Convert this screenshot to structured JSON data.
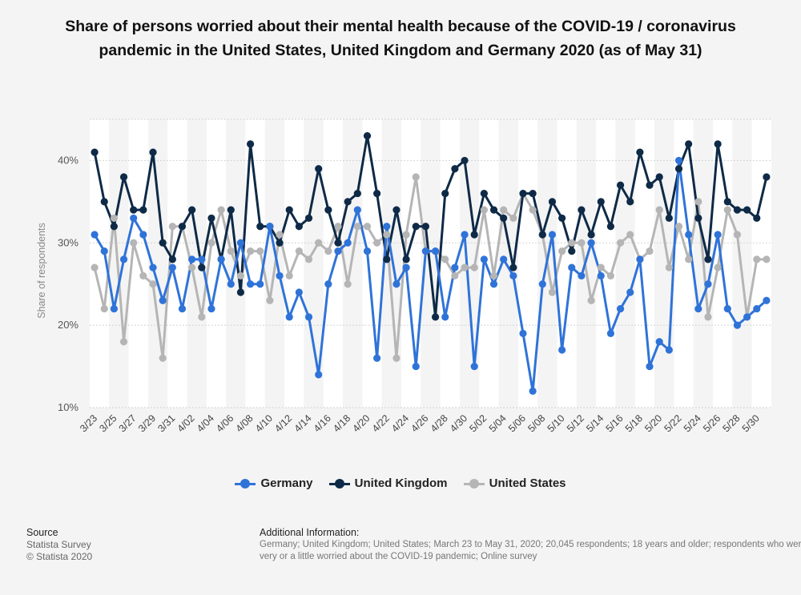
{
  "title": "Share of persons worried about their mental health because of the COVID-19 / coronavirus pandemic in the United States, United Kingdom and Germany 2020 (as of May 31)",
  "source": {
    "heading": "Source",
    "lines": [
      "Statista Survey",
      "© Statista 2020"
    ]
  },
  "additional_info": {
    "heading": "Additional Information:",
    "text": "Germany; United Kingdom; United States; March 23 to May 31, 2020; 20,045 respondents; 18 years and older; respondents who were very or a little worried about the COVID-19 pandemic; Online survey"
  },
  "chart_data": {
    "type": "line",
    "ylabel": "Share of respondents",
    "xlabel": "",
    "ylim": [
      10,
      45
    ],
    "yticks": [
      10,
      20,
      30,
      40
    ],
    "ytick_labels": [
      "10%",
      "20%",
      "30%",
      "40%"
    ],
    "grid": true,
    "legend_position": "bottom",
    "x": [
      "3/23",
      "3/24",
      "3/25",
      "3/26",
      "3/27",
      "3/28",
      "3/29",
      "3/30",
      "3/31",
      "4/01",
      "4/02",
      "4/03",
      "4/04",
      "4/05",
      "4/06",
      "4/07",
      "4/08",
      "4/09",
      "4/10",
      "4/11",
      "4/12",
      "4/13",
      "4/14",
      "4/15",
      "4/16",
      "4/17",
      "4/18",
      "4/19",
      "4/20",
      "4/21",
      "4/22",
      "4/23",
      "4/24",
      "4/25",
      "4/26",
      "4/27",
      "4/28",
      "4/29",
      "4/30",
      "5/01",
      "5/02",
      "5/03",
      "5/04",
      "5/05",
      "5/06",
      "5/07",
      "5/08",
      "5/09",
      "5/10",
      "5/11",
      "5/12",
      "5/13",
      "5/14",
      "5/15",
      "5/16",
      "5/17",
      "5/18",
      "5/19",
      "5/20",
      "5/21",
      "5/22",
      "5/23",
      "5/24",
      "5/25",
      "5/26",
      "5/27",
      "5/28",
      "5/29",
      "5/30",
      "5/31"
    ],
    "x_tick_labels": [
      "3/23",
      "3/25",
      "3/27",
      "3/29",
      "3/31",
      "4/02",
      "4/04",
      "4/06",
      "4/08",
      "4/10",
      "4/12",
      "4/14",
      "4/16",
      "4/18",
      "4/20",
      "4/22",
      "4/24",
      "4/26",
      "4/28",
      "4/30",
      "5/02",
      "5/04",
      "5/06",
      "5/08",
      "5/10",
      "5/12",
      "5/14",
      "5/16",
      "5/18",
      "5/20",
      "5/22",
      "5/24",
      "5/26",
      "5/28",
      "5/30"
    ],
    "series": [
      {
        "name": "Germany",
        "color": "#2f73d8",
        "values": [
          31,
          29,
          22,
          28,
          33,
          31,
          27,
          23,
          27,
          22,
          28,
          28,
          22,
          28,
          25,
          30,
          25,
          25,
          32,
          26,
          21,
          24,
          21,
          14,
          25,
          29,
          30,
          34,
          29,
          16,
          32,
          25,
          27,
          15,
          29,
          29,
          21,
          27,
          31,
          15,
          28,
          25,
          28,
          26,
          19,
          12,
          25,
          31,
          17,
          27,
          26,
          30,
          26,
          19,
          22,
          24,
          28,
          15,
          18,
          17,
          40,
          31,
          22,
          25,
          31,
          22,
          20,
          21,
          22,
          23
        ]
      },
      {
        "name": "United Kingdom",
        "color": "#0e2a47",
        "values": [
          41,
          35,
          32,
          38,
          34,
          34,
          41,
          30,
          28,
          32,
          34,
          27,
          33,
          28,
          34,
          24,
          42,
          32,
          32,
          30,
          34,
          32,
          33,
          39,
          34,
          30,
          35,
          36,
          43,
          36,
          28,
          34,
          28,
          32,
          32,
          21,
          36,
          39,
          40,
          31,
          36,
          34,
          33,
          27,
          36,
          36,
          31,
          35,
          33,
          29,
          34,
          31,
          35,
          32,
          37,
          35,
          41,
          37,
          38,
          33,
          39,
          42,
          33,
          28,
          42,
          35,
          34,
          34,
          33,
          38
        ]
      },
      {
        "name": "United States",
        "color": "#b5b5b5",
        "values": [
          27,
          22,
          33,
          18,
          30,
          26,
          25,
          16,
          32,
          32,
          27,
          21,
          30,
          34,
          29,
          26,
          29,
          29,
          23,
          31,
          26,
          29,
          28,
          30,
          29,
          32,
          25,
          32,
          32,
          30,
          31,
          16,
          31,
          38,
          29,
          29,
          28,
          26,
          27,
          27,
          34,
          26,
          34,
          33,
          36,
          34,
          31,
          24,
          29,
          30,
          30,
          23,
          27,
          26,
          30,
          31,
          28,
          29,
          34,
          27,
          32,
          28,
          35,
          21,
          27,
          34,
          31,
          21,
          28,
          28
        ]
      }
    ]
  }
}
